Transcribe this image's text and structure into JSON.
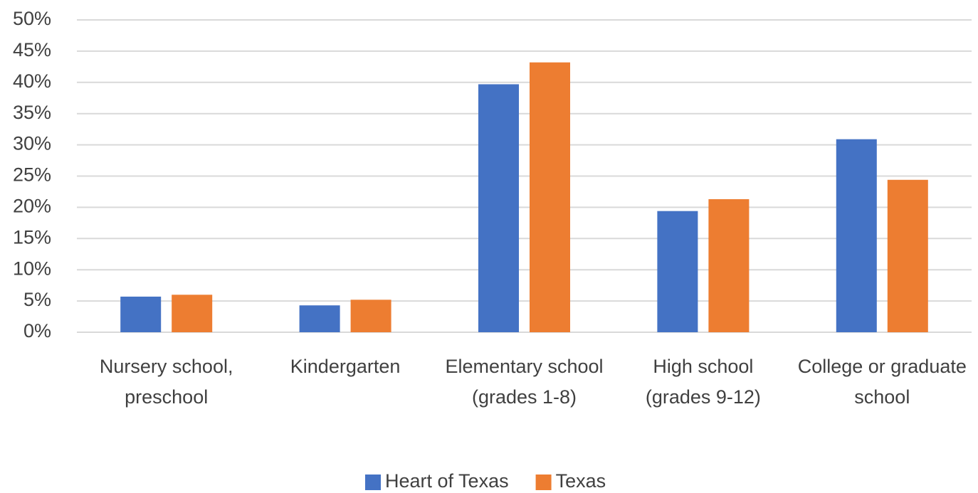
{
  "chart_data": {
    "type": "bar",
    "categories": [
      "Nursery school, preschool",
      "Kindergarten",
      "Elementary school (grades 1-8)",
      "High school (grades 9-12)",
      "College or graduate school"
    ],
    "series": [
      {
        "name": "Heart of Texas",
        "color": "#4472c4",
        "values": [
          5.7,
          4.3,
          39.7,
          19.4,
          30.9
        ]
      },
      {
        "name": "Texas",
        "color": "#ed7d31",
        "values": [
          6.0,
          5.2,
          43.2,
          21.3,
          24.4
        ]
      }
    ],
    "ylim": [
      0,
      50
    ],
    "yticks": [
      {
        "value": 0,
        "label": "0%"
      },
      {
        "value": 5,
        "label": "5%"
      },
      {
        "value": 10,
        "label": "10%"
      },
      {
        "value": 15,
        "label": "15%"
      },
      {
        "value": 20,
        "label": "20%"
      },
      {
        "value": 25,
        "label": "25%"
      },
      {
        "value": 30,
        "label": "30%"
      },
      {
        "value": 35,
        "label": "35%"
      },
      {
        "value": 40,
        "label": "40%"
      },
      {
        "value": 45,
        "label": "45%"
      },
      {
        "value": 50,
        "label": "50%"
      }
    ],
    "grid": true,
    "legend": "bottom"
  }
}
